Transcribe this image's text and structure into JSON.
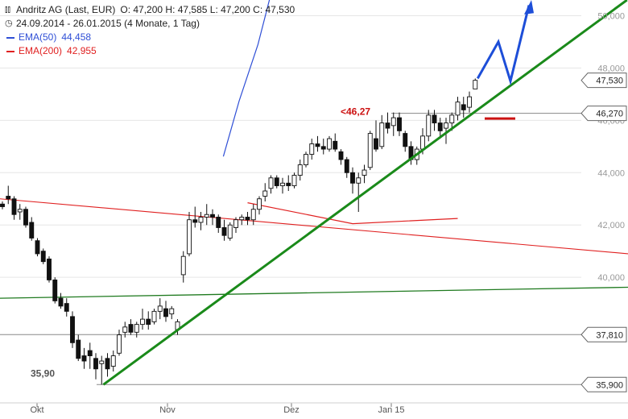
{
  "legend": {
    "title": "Andritz AG (Last, EUR)",
    "ohlc": "O: 47,200  H: 47,585  L: 47,200  C: 47,530",
    "period": "24.09.2014 - 26.01.2015 (4 Monate, 1 Tag)",
    "ema50_label": "EMA(50)",
    "ema50_value": "44,458",
    "ema200_label": "EMA(200)",
    "ema200_value": "42,955"
  },
  "colors": {
    "ema50": "#2f4fd6",
    "ema200": "#e02020",
    "trend": "#1a8a1a",
    "support": "#1f7a1f",
    "arrow": "#1d4ed8",
    "annotation_red": "#cc1111",
    "grid": "#e6e6e6",
    "hline": "#888888"
  },
  "icons": {
    "chart": "bar-chart-icon",
    "clock": "clock-icon"
  },
  "chart_data": {
    "type": "candlestick",
    "title": "Andritz AG (Last, EUR)",
    "ylim": [
      35.2,
      50.6
    ],
    "y_ticks": [
      "40,000",
      "42,000",
      "44,000",
      "46,000",
      "48,000",
      "50,000"
    ],
    "x_ticks": [
      "Okt",
      "Nov",
      "Dez",
      "Jan 15"
    ],
    "price_tags": [
      "47,530",
      "46,270",
      "37,810",
      "35,900"
    ],
    "horizontal_levels": [
      46.27,
      37.81,
      35.9
    ],
    "annotations": {
      "high": "<46,27",
      "low": "35,90"
    },
    "candles": [
      [
        42.8,
        42.9,
        42.6,
        42.7
      ],
      [
        43.1,
        43.5,
        42.8,
        43.0
      ],
      [
        43.0,
        43.1,
        42.2,
        42.4
      ],
      [
        42.5,
        42.8,
        42.2,
        42.6
      ],
      [
        42.6,
        42.7,
        41.9,
        42.0
      ],
      [
        42.1,
        42.3,
        41.4,
        41.5
      ],
      [
        41.4,
        41.5,
        40.8,
        40.9
      ],
      [
        41.0,
        41.1,
        40.5,
        40.6
      ],
      [
        40.7,
        40.8,
        39.8,
        39.9
      ],
      [
        39.9,
        40.0,
        39.0,
        39.1
      ],
      [
        39.2,
        39.4,
        38.8,
        38.9
      ],
      [
        39.0,
        39.2,
        38.5,
        38.7
      ],
      [
        38.5,
        38.7,
        37.3,
        37.5
      ],
      [
        37.6,
        37.8,
        36.8,
        36.9
      ],
      [
        37.0,
        37.3,
        36.5,
        36.8
      ],
      [
        37.2,
        37.5,
        36.5,
        37.0
      ],
      [
        36.9,
        37.1,
        36.1,
        36.5
      ],
      [
        36.7,
        37.0,
        35.9,
        36.8
      ],
      [
        36.9,
        37.1,
        36.2,
        36.5
      ],
      [
        36.6,
        37.2,
        36.4,
        37.0
      ],
      [
        37.1,
        38.0,
        37.0,
        37.8
      ],
      [
        37.9,
        38.3,
        37.7,
        38.1
      ],
      [
        38.2,
        38.4,
        37.8,
        37.9
      ],
      [
        37.9,
        38.3,
        37.7,
        38.2
      ],
      [
        38.2,
        38.8,
        38.0,
        38.4
      ],
      [
        38.4,
        38.7,
        38.0,
        38.2
      ],
      [
        38.3,
        38.8,
        38.2,
        38.7
      ],
      [
        38.7,
        39.2,
        38.4,
        38.9
      ],
      [
        38.8,
        39.1,
        38.3,
        38.5
      ],
      [
        38.6,
        38.9,
        38.4,
        38.8
      ],
      [
        38.0,
        38.4,
        37.8,
        38.3
      ],
      [
        40.1,
        41.0,
        39.8,
        40.8
      ],
      [
        40.9,
        42.5,
        40.8,
        42.2
      ],
      [
        42.2,
        42.7,
        41.9,
        42.1
      ],
      [
        42.1,
        42.5,
        41.8,
        42.3
      ],
      [
        42.3,
        42.8,
        42.0,
        42.4
      ],
      [
        42.4,
        42.6,
        42.0,
        42.3
      ],
      [
        42.3,
        42.4,
        41.7,
        41.9
      ],
      [
        41.9,
        42.2,
        41.4,
        41.6
      ],
      [
        41.5,
        42.1,
        41.4,
        42.0
      ],
      [
        41.9,
        42.3,
        41.7,
        42.2
      ],
      [
        42.2,
        42.4,
        42.0,
        42.3
      ],
      [
        42.3,
        42.5,
        42.0,
        42.2
      ],
      [
        42.2,
        42.8,
        42.0,
        42.6
      ],
      [
        42.6,
        43.1,
        42.4,
        43.0
      ],
      [
        43.1,
        43.6,
        42.9,
        43.3
      ],
      [
        43.4,
        43.9,
        43.2,
        43.8
      ],
      [
        43.8,
        43.9,
        43.4,
        43.5
      ],
      [
        43.5,
        43.8,
        43.2,
        43.6
      ],
      [
        43.6,
        43.9,
        43.3,
        43.5
      ],
      [
        43.5,
        44.0,
        43.4,
        43.9
      ],
      [
        43.9,
        44.5,
        43.7,
        44.3
      ],
      [
        44.3,
        44.8,
        44.2,
        44.7
      ],
      [
        44.7,
        45.3,
        44.5,
        45.1
      ],
      [
        45.1,
        45.4,
        44.8,
        45.0
      ],
      [
        45.0,
        45.3,
        44.7,
        44.9
      ],
      [
        44.9,
        45.4,
        44.8,
        45.3
      ],
      [
        45.2,
        45.5,
        44.8,
        44.9
      ],
      [
        44.8,
        44.9,
        44.3,
        44.5
      ],
      [
        44.5,
        44.6,
        43.8,
        44.0
      ],
      [
        44.0,
        44.2,
        43.2,
        43.6
      ],
      [
        43.6,
        44.0,
        42.5,
        43.8
      ],
      [
        43.9,
        44.3,
        43.6,
        44.1
      ],
      [
        44.2,
        45.6,
        44.1,
        45.5
      ],
      [
        45.3,
        46.0,
        44.8,
        44.9
      ],
      [
        45.0,
        46.2,
        44.9,
        45.9
      ],
      [
        45.9,
        46.3,
        45.5,
        45.7
      ],
      [
        45.8,
        46.3,
        45.4,
        46.1
      ],
      [
        46.1,
        46.3,
        45.4,
        45.6
      ],
      [
        45.5,
        45.6,
        44.8,
        45.0
      ],
      [
        45.0,
        45.2,
        44.3,
        44.5
      ],
      [
        44.5,
        45.0,
        44.3,
        44.9
      ],
      [
        44.9,
        45.7,
        44.7,
        45.4
      ],
      [
        45.4,
        46.4,
        45.2,
        46.2
      ],
      [
        46.2,
        46.4,
        45.6,
        45.9
      ],
      [
        45.9,
        46.1,
        45.3,
        45.6
      ],
      [
        45.7,
        46.1,
        45.1,
        45.9
      ],
      [
        45.9,
        46.3,
        45.6,
        46.2
      ],
      [
        46.2,
        46.9,
        46.0,
        46.7
      ],
      [
        46.6,
        46.9,
        46.1,
        46.4
      ],
      [
        46.5,
        47.1,
        46.3,
        46.9
      ],
      [
        47.2,
        47.6,
        47.2,
        47.53
      ]
    ],
    "ema50": [
      [
        44.62,
        37.85
      ],
      [
        46.75,
        40.57
      ],
      [
        48.9,
        43.78
      ],
      [
        51.5,
        46.77
      ],
      [
        53.2,
        49.77
      ],
      [
        55.0,
        52.8
      ],
      [
        57.5,
        56.35
      ],
      [
        60.5,
        59.0
      ],
      [
        62.6,
        62.05
      ],
      [
        64.8,
        65.0
      ],
      [
        67.2,
        68.15
      ],
      [
        69.6,
        71.1
      ]
    ],
    "ema200": [
      [
        42.85,
        42.0
      ],
      [
        42.05,
        60.0
      ],
      [
        42.25,
        78.0
      ]
    ],
    "trend_line": [
      [
        35.9,
        17.3
      ],
      [
        46.9,
        81.9
      ],
      [
        50.6,
        107.0
      ]
    ],
    "support_line": [
      [
        39.2,
        0.0
      ],
      [
        39.62,
        107.0
      ]
    ]
  }
}
